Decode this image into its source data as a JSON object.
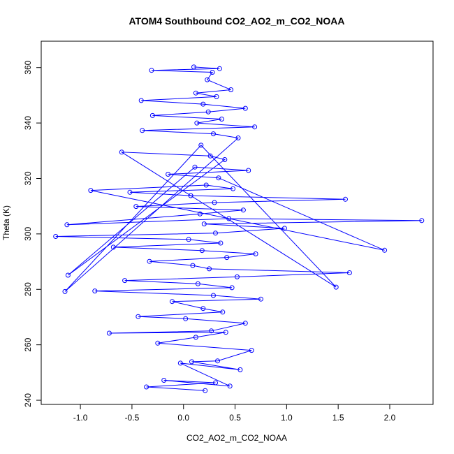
{
  "chart_data": {
    "type": "line",
    "title": "ATOM4 Southbound CO2_AO2_m_CO2_NOAA",
    "xlabel": "CO2_AO2_m_CO2_NOAA",
    "ylabel": "Theta (K)",
    "xlim": [
      -1.38,
      2.42
    ],
    "ylim": [
      238.5,
      369.5
    ],
    "x_ticks": [
      -1.0,
      -0.5,
      0.0,
      0.5,
      1.0,
      1.5,
      2.0
    ],
    "x_tick_labels": [
      "-1.0",
      "-0.5",
      "0.0",
      "0.5",
      "1.0",
      "1.5",
      "2.0"
    ],
    "y_ticks": [
      240,
      260,
      280,
      300,
      320,
      340,
      360
    ],
    "y_tick_labels": [
      "240",
      "260",
      "280",
      "300",
      "320",
      "340",
      "360"
    ],
    "grid": false,
    "marker": "open-circle",
    "series": [
      {
        "color": "#0000ff",
        "x": [
          0.21,
          -0.36,
          0.31,
          -0.19,
          0.45,
          -0.03,
          0.55,
          0.08,
          0.33,
          0.66,
          -0.25,
          0.12,
          0.41,
          -0.72,
          0.27,
          0.6,
          0.02,
          -0.44,
          0.38,
          0.19,
          -0.11,
          0.75,
          0.29,
          -0.86,
          0.47,
          0.14,
          -0.57,
          0.52,
          1.61,
          0.25,
          0.09,
          -0.33,
          0.42,
          0.7,
          0.18,
          -0.68,
          0.36,
          0.05,
          -1.24,
          0.31,
          0.98,
          0.2,
          2.31,
          0.44,
          -1.13,
          0.16,
          0.58,
          -0.46,
          0.3,
          1.57,
          0.07,
          -0.52,
          0.48,
          0.22,
          -0.9,
          1.95,
          0.34,
          -0.15,
          0.63,
          0.11,
          -1.12,
          0.4,
          0.26,
          -0.6,
          1.48,
          0.17,
          -1.15,
          0.53,
          0.29,
          -0.4,
          0.69,
          0.13,
          0.37,
          -0.3,
          0.24,
          0.6,
          0.19,
          -0.41,
          0.32,
          0.12,
          0.46,
          0.23,
          0.28,
          -0.31,
          0.35,
          0.1
        ],
        "y": [
          243.5,
          244.8,
          246.3,
          247.2,
          245.1,
          253.4,
          251.0,
          253.9,
          254.2,
          258.0,
          260.6,
          262.7,
          264.5,
          264.2,
          265.0,
          267.8,
          269.4,
          270.2,
          271.8,
          273.1,
          275.6,
          276.5,
          277.8,
          279.4,
          280.6,
          282.0,
          283.2,
          284.5,
          286.0,
          287.4,
          288.6,
          290.1,
          291.5,
          292.8,
          294.0,
          295.2,
          296.7,
          298.0,
          299.1,
          300.3,
          302.0,
          303.6,
          304.8,
          305.5,
          303.3,
          307.2,
          308.6,
          309.9,
          311.3,
          312.5,
          313.8,
          315.0,
          316.3,
          317.6,
          315.7,
          294.1,
          320.2,
          321.5,
          322.9,
          324.1,
          285.1,
          326.8,
          328.1,
          329.5,
          280.8,
          332.0,
          279.2,
          334.6,
          336.1,
          337.3,
          338.6,
          340.0,
          341.4,
          342.7,
          344.0,
          345.3,
          346.8,
          348.1,
          349.5,
          350.8,
          352.0,
          355.6,
          358.3,
          359.0,
          359.6,
          360.2
        ]
      }
    ]
  }
}
